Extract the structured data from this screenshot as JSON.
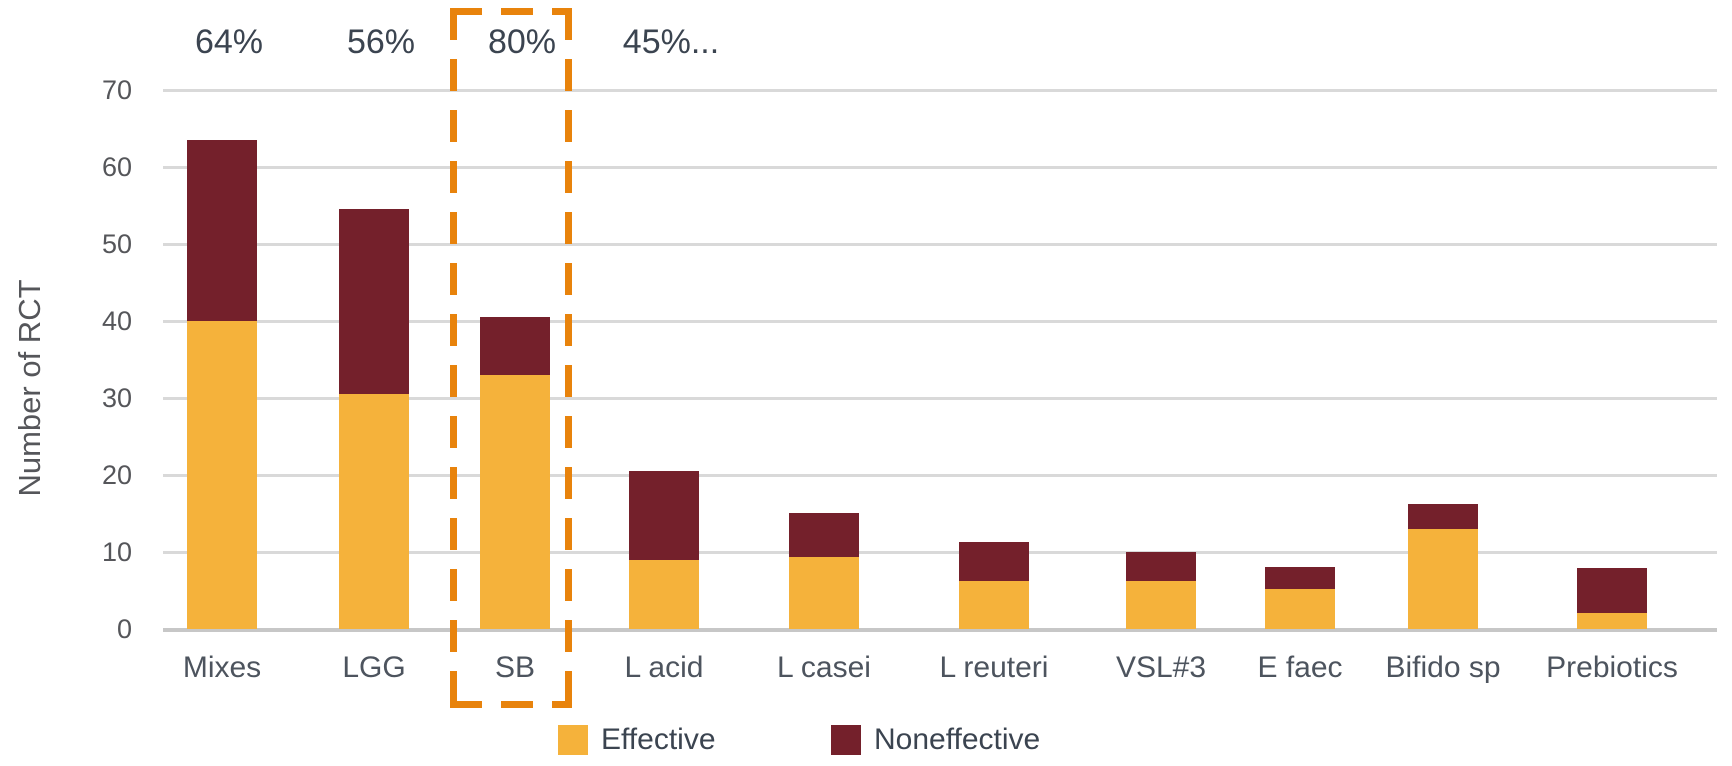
{
  "chart_data": {
    "type": "bar",
    "stacked": true,
    "title": "",
    "xlabel": "",
    "ylabel": "Number of RCT",
    "ylim": [
      0,
      70
    ],
    "yticks": [
      0,
      10,
      20,
      30,
      40,
      50,
      60,
      70
    ],
    "grid": "horizontal",
    "legend_position": "bottom",
    "categories": [
      "Mixes",
      "LGG",
      "SB",
      "L acid",
      "L casei",
      "L reuteri",
      "VSL#3",
      "E faec",
      "Bifido sp",
      "Prebiotics"
    ],
    "series": [
      {
        "name": "Effective",
        "color": "#F5B23B",
        "values": [
          40,
          30.5,
          33,
          9,
          9.3,
          6.2,
          6.2,
          5.2,
          13,
          2.1
        ]
      },
      {
        "name": "Noneffective",
        "color": "#74202B",
        "values": [
          23.5,
          24,
          7.5,
          11.5,
          5.7,
          5.1,
          3.8,
          2.8,
          3.2,
          5.9
        ]
      }
    ],
    "annotations": [
      {
        "category": "Mixes",
        "text": "64%"
      },
      {
        "category": "LGG",
        "text": "56%"
      },
      {
        "category": "SB",
        "text": "80%"
      },
      {
        "category": "L acid",
        "text": "45%..."
      }
    ],
    "highlight": {
      "category": "SB",
      "style": "dashed-box",
      "color": "#E8830C"
    }
  },
  "legend": {
    "items": [
      {
        "label": "Effective",
        "color": "#F5B23B"
      },
      {
        "label": "Noneffective",
        "color": "#74202B"
      }
    ]
  },
  "colors": {
    "gridline": "#D9D9D9",
    "baseline": "#C7C7C7",
    "highlight": "#E8830C",
    "text_dark": "#3B4450",
    "text_axis": "#55565A"
  }
}
